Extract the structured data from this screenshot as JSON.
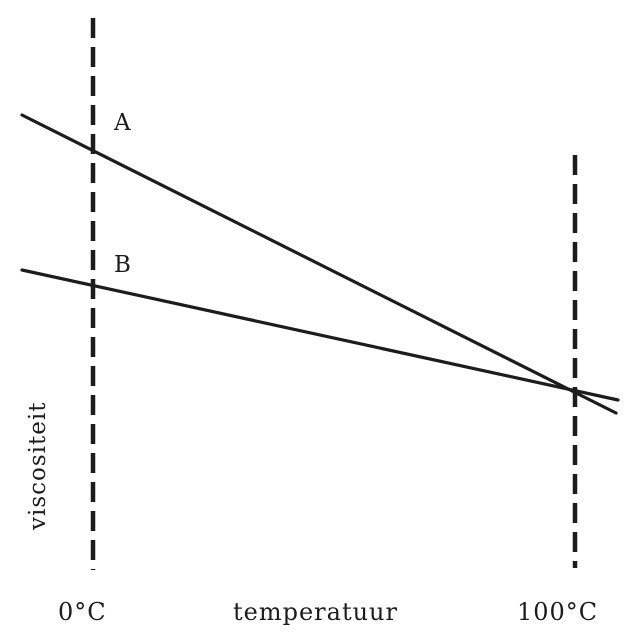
{
  "figure": {
    "labels": {
      "line_a": "A",
      "line_b": "B",
      "temp_low": "0°C",
      "temp_high": "100°C",
      "x_axis": "temperatuur",
      "y_axis": "viscositeit"
    },
    "colors": {
      "ink": "#1c1c1c",
      "background": "#ffffff"
    }
  }
}
